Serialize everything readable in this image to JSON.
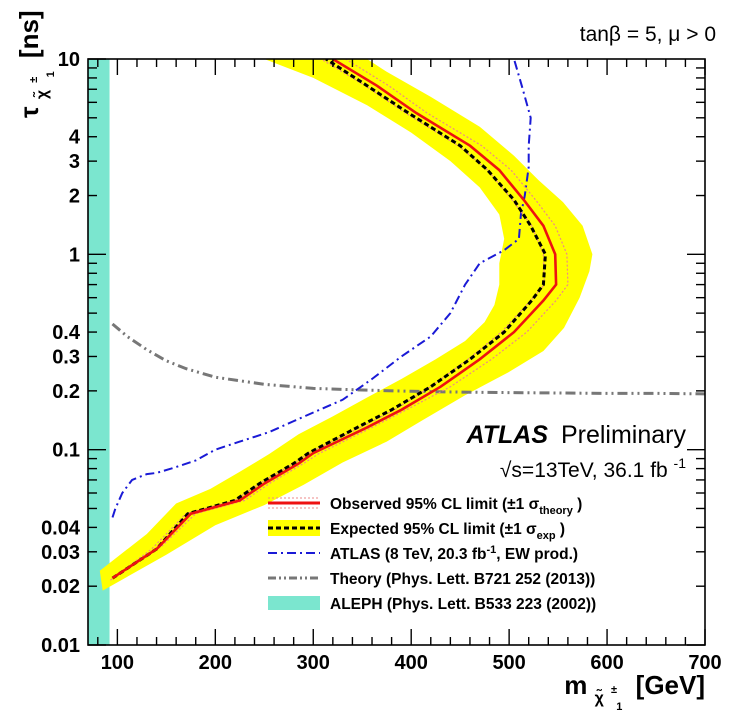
{
  "chart_data": {
    "type": "line",
    "title": "",
    "corner_label": "tanβ = 5, μ > 0",
    "experiment": "ATLAS",
    "status": "Preliminary",
    "energy_lumi": {
      "sqrt_s": "√s=13TeV, 36.1 fb",
      "exponent": "-1"
    },
    "xlabel": {
      "prefix": "m",
      "particle": "χ̃",
      "charge": "±",
      "index": "1",
      "unit": "[GeV]"
    },
    "ylabel": {
      "prefix": "τ",
      "particle": "χ̃",
      "charge": "±",
      "index": "1",
      "unit": "[ns]"
    },
    "xlim": [
      70,
      700
    ],
    "ylim": [
      0.01,
      10
    ],
    "y_log": true,
    "grid": false,
    "legend_position": "bottom-right",
    "x_ticks": [
      "100",
      "200",
      "300",
      "400",
      "500",
      "600",
      "700"
    ],
    "x_tick_values": [
      100,
      200,
      300,
      400,
      500,
      600,
      700
    ],
    "y_ticks": [
      "0.01",
      "0.02",
      "0.03",
      "0.04",
      "0.1",
      "0.2",
      "0.3",
      "0.4",
      "1",
      "2",
      "3",
      "4",
      "10"
    ],
    "y_tick_values": [
      0.01,
      0.02,
      0.03,
      0.04,
      0.1,
      0.2,
      0.3,
      0.4,
      1,
      2,
      3,
      4,
      10
    ],
    "legend": [
      {
        "label": "Observed 95% CL limit (±1 σ",
        "sub": "theory",
        "close": " )",
        "style": "observed",
        "color": "#ee1111"
      },
      {
        "label": "Expected 95% CL limit (±1 σ",
        "sub": "exp",
        "close": " )",
        "style": "expected",
        "color": "#ffff00"
      },
      {
        "label": "ATLAS (8 TeV, 20.3 fb",
        "sup": "-1",
        "close": ", EW prod.)",
        "style": "atlas8",
        "color": "#1a1ad6"
      },
      {
        "label": "Theory (Phys. Lett. B721 252 (2013))",
        "style": "theory",
        "color": "#777777"
      },
      {
        "label": "ALEPH (Phys. Lett. B533 223 (2002))",
        "style": "aleph",
        "color": "#7be6cf"
      }
    ],
    "series": [
      {
        "name": "Observed 95% CL limit",
        "style": "observed",
        "color": "#ee1111",
        "points": [
          [
            95,
            0.022
          ],
          [
            140,
            0.031
          ],
          [
            175,
            0.047
          ],
          [
            225,
            0.055
          ],
          [
            250,
            0.067
          ],
          [
            285,
            0.085
          ],
          [
            300,
            0.096
          ],
          [
            355,
            0.13
          ],
          [
            390,
            0.16
          ],
          [
            430,
            0.21
          ],
          [
            470,
            0.29
          ],
          [
            505,
            0.4
          ],
          [
            535,
            0.58
          ],
          [
            548,
            0.7
          ],
          [
            547,
            1.0
          ],
          [
            535,
            1.4
          ],
          [
            515,
            1.9
          ],
          [
            490,
            2.7
          ],
          [
            460,
            3.6
          ],
          [
            405,
            5.3
          ],
          [
            365,
            7.3
          ],
          [
            320,
            10.0
          ]
        ]
      },
      {
        "name": "Observed +1 σ theory",
        "style": "obs_band",
        "color": "#ee8888",
        "points": [
          [
            97,
            0.0225
          ],
          [
            145,
            0.032
          ],
          [
            180,
            0.047
          ],
          [
            230,
            0.055
          ],
          [
            255,
            0.067
          ],
          [
            290,
            0.085
          ],
          [
            305,
            0.095
          ],
          [
            360,
            0.13
          ],
          [
            395,
            0.16
          ],
          [
            440,
            0.21
          ],
          [
            482,
            0.29
          ],
          [
            518,
            0.4
          ],
          [
            548,
            0.58
          ],
          [
            560,
            0.7
          ],
          [
            559,
            1.0
          ],
          [
            547,
            1.4
          ],
          [
            527,
            1.9
          ],
          [
            502,
            2.7
          ],
          [
            472,
            3.6
          ],
          [
            416,
            5.3
          ],
          [
            377,
            7.3
          ],
          [
            333,
            10.0
          ]
        ]
      },
      {
        "name": "Observed -1 σ theory",
        "style": "obs_band",
        "color": "#ee8888",
        "points": [
          [
            93,
            0.0215
          ],
          [
            135,
            0.031
          ],
          [
            170,
            0.047
          ],
          [
            220,
            0.055
          ],
          [
            245,
            0.067
          ],
          [
            280,
            0.085
          ],
          [
            295,
            0.096
          ],
          [
            348,
            0.13
          ],
          [
            383,
            0.16
          ],
          [
            420,
            0.21
          ],
          [
            458,
            0.29
          ],
          [
            492,
            0.4
          ],
          [
            522,
            0.58
          ],
          [
            536,
            0.7
          ],
          [
            535,
            1.0
          ],
          [
            523,
            1.4
          ],
          [
            503,
            1.9
          ],
          [
            478,
            2.7
          ],
          [
            448,
            3.6
          ],
          [
            394,
            5.3
          ],
          [
            353,
            7.3
          ],
          [
            308,
            10.0
          ]
        ]
      },
      {
        "name": "Expected 95% CL limit",
        "style": "expected",
        "color": "#000000",
        "points": [
          [
            95,
            0.022
          ],
          [
            140,
            0.031
          ],
          [
            172,
            0.047
          ],
          [
            220,
            0.055
          ],
          [
            245,
            0.067
          ],
          [
            280,
            0.085
          ],
          [
            295,
            0.096
          ],
          [
            345,
            0.13
          ],
          [
            380,
            0.16
          ],
          [
            420,
            0.21
          ],
          [
            460,
            0.29
          ],
          [
            495,
            0.4
          ],
          [
            523,
            0.58
          ],
          [
            535,
            0.7
          ],
          [
            537,
            1.0
          ],
          [
            522,
            1.4
          ],
          [
            505,
            1.9
          ],
          [
            478,
            2.7
          ],
          [
            450,
            3.6
          ],
          [
            397,
            5.3
          ],
          [
            355,
            7.3
          ],
          [
            313,
            10.0
          ]
        ]
      },
      {
        "name": "Expected +1 σ exp",
        "style": "exp_band",
        "color": "#ffff00",
        "points": [
          [
            85,
            0.019
          ],
          [
            150,
            0.029
          ],
          [
            200,
            0.041
          ],
          [
            250,
            0.052
          ],
          [
            290,
            0.066
          ],
          [
            330,
            0.086
          ],
          [
            375,
            0.11
          ],
          [
            410,
            0.14
          ],
          [
            455,
            0.19
          ],
          [
            500,
            0.25
          ],
          [
            535,
            0.32
          ],
          [
            556,
            0.42
          ],
          [
            572,
            0.6
          ],
          [
            582,
            0.82
          ],
          [
            585,
            1.0
          ],
          [
            575,
            1.4
          ],
          [
            555,
            1.85
          ],
          [
            530,
            2.4
          ],
          [
            505,
            3.2
          ],
          [
            470,
            4.5
          ],
          [
            420,
            6.4
          ],
          [
            375,
            8.6
          ],
          [
            355,
            10.0
          ]
        ]
      },
      {
        "name": "Expected -1 σ exp",
        "style": "exp_band",
        "color": "#ffff00",
        "points": [
          [
            82,
            0.024
          ],
          [
            130,
            0.037
          ],
          [
            160,
            0.053
          ],
          [
            195,
            0.063
          ],
          [
            225,
            0.077
          ],
          [
            255,
            0.095
          ],
          [
            285,
            0.12
          ],
          [
            320,
            0.148
          ],
          [
            355,
            0.185
          ],
          [
            390,
            0.23
          ],
          [
            425,
            0.29
          ],
          [
            455,
            0.36
          ],
          [
            475,
            0.45
          ],
          [
            485,
            0.55
          ],
          [
            490,
            0.7
          ],
          [
            490,
            0.9
          ],
          [
            495,
            1.2
          ],
          [
            490,
            1.6
          ],
          [
            470,
            2.2
          ],
          [
            440,
            3.0
          ],
          [
            400,
            4.2
          ],
          [
            355,
            5.8
          ],
          [
            300,
            8.0
          ],
          [
            250,
            10.0
          ]
        ]
      },
      {
        "name": "ATLAS (8 TeV, 20.3 fb-1, EW prod.)",
        "style": "atlas8",
        "color": "#1a1ad6",
        "points": [
          [
            95,
            0.045
          ],
          [
            98,
            0.05
          ],
          [
            105,
            0.06
          ],
          [
            115,
            0.07
          ],
          [
            130,
            0.075
          ],
          [
            140,
            0.076
          ],
          [
            155,
            0.08
          ],
          [
            180,
            0.088
          ],
          [
            200,
            0.1
          ],
          [
            225,
            0.11
          ],
          [
            255,
            0.123
          ],
          [
            280,
            0.14
          ],
          [
            300,
            0.155
          ],
          [
            330,
            0.18
          ],
          [
            360,
            0.23
          ],
          [
            390,
            0.3
          ],
          [
            420,
            0.38
          ],
          [
            440,
            0.5
          ],
          [
            455,
            0.7
          ],
          [
            470,
            0.9
          ],
          [
            495,
            1.05
          ],
          [
            510,
            1.2
          ],
          [
            512,
            1.6
          ],
          [
            516,
            2.0
          ],
          [
            520,
            2.8
          ],
          [
            520,
            3.6
          ],
          [
            522,
            5.0
          ],
          [
            514,
            7.0
          ],
          [
            505,
            10.0
          ]
        ]
      },
      {
        "name": "Theory (Phys. Lett. B721 252 (2013))",
        "style": "theory",
        "color": "#777777",
        "points": [
          [
            95,
            0.44
          ],
          [
            110,
            0.38
          ],
          [
            130,
            0.325
          ],
          [
            150,
            0.285
          ],
          [
            170,
            0.26
          ],
          [
            200,
            0.235
          ],
          [
            250,
            0.216
          ],
          [
            300,
            0.206
          ],
          [
            350,
            0.202
          ],
          [
            400,
            0.199
          ],
          [
            450,
            0.197
          ],
          [
            500,
            0.196
          ],
          [
            550,
            0.195
          ],
          [
            600,
            0.194
          ],
          [
            650,
            0.194
          ],
          [
            700,
            0.193
          ]
        ]
      },
      {
        "name": "ALEPH (Phys. Lett. B533 223 (2002))",
        "style": "aleph",
        "color": "#7be6cf",
        "x_range": [
          70,
          92
        ]
      }
    ]
  }
}
